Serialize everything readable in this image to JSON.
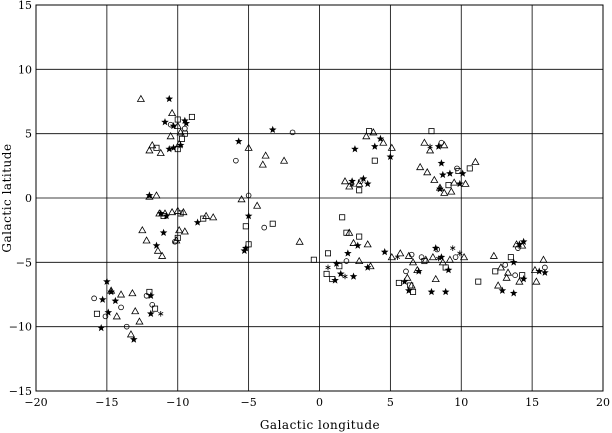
{
  "chart_data": {
    "type": "scatter",
    "title": "",
    "xlabel": "Galactic longitude",
    "ylabel": "Galactic latitude",
    "xlim": [
      -20,
      20
    ],
    "ylim": [
      -15,
      15
    ],
    "xticks": [
      -20,
      -15,
      -10,
      -5,
      0,
      5,
      10,
      15,
      20
    ],
    "yticks": [
      -15,
      -10,
      -5,
      0,
      5,
      10,
      15
    ],
    "xtick_labels": [
      "−20",
      "−15",
      "−10",
      "−5",
      "0",
      "5",
      "10",
      "15",
      "20"
    ],
    "ytick_labels": [
      "−15",
      "−10",
      "−5",
      "0",
      "5",
      "10",
      "15"
    ],
    "grid": true,
    "series": [
      {
        "marker": "triangle",
        "points": [
          [
            -12.6,
            7.7
          ],
          [
            -10.4,
            6.6
          ],
          [
            -10.0,
            5.6
          ],
          [
            -9.8,
            5.1
          ],
          [
            -10.5,
            4.8
          ],
          [
            -11.8,
            4.1
          ],
          [
            -12.0,
            3.7
          ],
          [
            -11.2,
            3.5
          ],
          [
            -9.9,
            4.2
          ],
          [
            -12.0,
            0.1
          ],
          [
            -11.5,
            0.2
          ],
          [
            -11.3,
            -1.2
          ],
          [
            -10.9,
            -1.2
          ],
          [
            -10.4,
            -1.1
          ],
          [
            -10.0,
            -1.0
          ],
          [
            -9.6,
            -1.1
          ],
          [
            -12.5,
            -2.5
          ],
          [
            -12.2,
            -3.3
          ],
          [
            -11.4,
            -4.1
          ],
          [
            -11.1,
            -4.5
          ],
          [
            -10.1,
            -3.3
          ],
          [
            -9.5,
            -2.6
          ],
          [
            -9.9,
            -2.5
          ],
          [
            -8.0,
            -1.4
          ],
          [
            -7.5,
            -1.5
          ],
          [
            -5.0,
            3.9
          ],
          [
            -3.8,
            3.3
          ],
          [
            -4.0,
            2.6
          ],
          [
            -2.5,
            2.9
          ],
          [
            -5.5,
            -0.1
          ],
          [
            -4.4,
            -0.6
          ],
          [
            -1.4,
            -3.4
          ],
          [
            -14.7,
            -7.2
          ],
          [
            -14.3,
            -9.2
          ],
          [
            -13.2,
            -7.4
          ],
          [
            -13.0,
            -8.8
          ],
          [
            -12.7,
            -9.6
          ],
          [
            -13.3,
            -10.6
          ],
          [
            -14.0,
            -7.5
          ],
          [
            1.8,
            1.3
          ],
          [
            2.1,
            0.9
          ],
          [
            2.8,
            1.1
          ],
          [
            3.3,
            4.8
          ],
          [
            3.8,
            5.1
          ],
          [
            4.5,
            4.3
          ],
          [
            5.1,
            3.9
          ],
          [
            7.4,
            4.3
          ],
          [
            7.8,
            3.7
          ],
          [
            8.8,
            4.1
          ],
          [
            7.1,
            2.4
          ],
          [
            7.6,
            2.0
          ],
          [
            8.1,
            1.4
          ],
          [
            8.5,
            0.8
          ],
          [
            8.8,
            0.4
          ],
          [
            9.3,
            0.5
          ],
          [
            9.5,
            1.2
          ],
          [
            10.3,
            1.1
          ],
          [
            11.0,
            2.8
          ],
          [
            2.1,
            -2.7
          ],
          [
            2.4,
            -3.5
          ],
          [
            3.4,
            -3.6
          ],
          [
            2.8,
            -4.9
          ],
          [
            3.6,
            -5.3
          ],
          [
            5.1,
            -4.6
          ],
          [
            5.7,
            -4.3
          ],
          [
            6.3,
            -4.5
          ],
          [
            6.6,
            -5.0
          ],
          [
            6.9,
            -5.6
          ],
          [
            7.5,
            -4.8
          ],
          [
            8.0,
            -4.6
          ],
          [
            8.7,
            -5.0
          ],
          [
            9.2,
            -4.8
          ],
          [
            10.2,
            -4.6
          ],
          [
            6.2,
            -6.2
          ],
          [
            6.5,
            -6.8
          ],
          [
            8.2,
            -6.3
          ],
          [
            12.3,
            -4.5
          ],
          [
            12.8,
            -5.4
          ],
          [
            13.3,
            -5.8
          ],
          [
            13.9,
            -3.6
          ],
          [
            14.3,
            -3.7
          ],
          [
            15.2,
            -5.6
          ],
          [
            15.8,
            -4.8
          ],
          [
            12.6,
            -6.8
          ],
          [
            13.2,
            -6.2
          ],
          [
            14.1,
            -6.5
          ],
          [
            15.3,
            -6.5
          ]
        ]
      },
      {
        "marker": "star",
        "points": [
          [
            -10.6,
            7.7
          ],
          [
            -10.9,
            5.9
          ],
          [
            -10.3,
            5.6
          ],
          [
            -9.5,
            6.0
          ],
          [
            -9.4,
            5.8
          ],
          [
            -10.6,
            3.8
          ],
          [
            -10.3,
            3.9
          ],
          [
            -9.8,
            4.1
          ],
          [
            -5.7,
            4.4
          ],
          [
            -3.3,
            5.3
          ],
          [
            -12.0,
            0.2
          ],
          [
            -11.2,
            -1.2
          ],
          [
            -10.8,
            -1.4
          ],
          [
            -11.5,
            -3.7
          ],
          [
            -8.6,
            -1.9
          ],
          [
            -5.0,
            -1.4
          ],
          [
            -5.2,
            -3.9
          ],
          [
            -5.3,
            -4.1
          ],
          [
            -15.4,
            -10.1
          ],
          [
            -15.3,
            -7.9
          ],
          [
            -15.0,
            -6.5
          ],
          [
            -14.7,
            -7.3
          ],
          [
            -14.4,
            -8.0
          ],
          [
            -14.9,
            -8.9
          ],
          [
            -11.9,
            -7.6
          ],
          [
            -11.9,
            -9.0
          ],
          [
            -13.1,
            -11.0
          ],
          [
            -11.0,
            -2.7
          ],
          [
            2.3,
            1.3
          ],
          [
            3.1,
            1.5
          ],
          [
            3.4,
            1.1
          ],
          [
            2.5,
            3.8
          ],
          [
            3.9,
            4.0
          ],
          [
            4.3,
            4.6
          ],
          [
            5.0,
            3.2
          ],
          [
            8.4,
            4.0
          ],
          [
            8.6,
            2.7
          ],
          [
            8.7,
            1.8
          ],
          [
            8.5,
            0.7
          ],
          [
            9.2,
            1.9
          ],
          [
            9.9,
            1.1
          ],
          [
            10.1,
            1.9
          ],
          [
            2.7,
            -3.7
          ],
          [
            2.0,
            -4.3
          ],
          [
            1.2,
            -5.1
          ],
          [
            1.5,
            -5.9
          ],
          [
            1.1,
            -6.4
          ],
          [
            2.4,
            -6.1
          ],
          [
            3.4,
            -5.4
          ],
          [
            4.6,
            -4.2
          ],
          [
            6.0,
            -6.5
          ],
          [
            7.0,
            -5.7
          ],
          [
            8.2,
            -3.9
          ],
          [
            8.6,
            -4.6
          ],
          [
            9.1,
            -5.6
          ],
          [
            8.9,
            -7.3
          ],
          [
            7.9,
            -7.3
          ],
          [
            6.3,
            -7.2
          ],
          [
            13.7,
            -5.0
          ],
          [
            14.4,
            -3.4
          ],
          [
            14.1,
            -3.6
          ],
          [
            14.4,
            -6.3
          ],
          [
            15.5,
            -5.7
          ],
          [
            15.9,
            -5.8
          ],
          [
            12.9,
            -7.2
          ],
          [
            13.7,
            -7.4
          ]
        ]
      },
      {
        "marker": "square",
        "points": [
          [
            -10.0,
            6.1
          ],
          [
            -9.0,
            6.3
          ],
          [
            -9.5,
            5.0
          ],
          [
            -9.7,
            4.6
          ],
          [
            -11.5,
            3.9
          ],
          [
            -10.0,
            3.8
          ],
          [
            -11.0,
            -1.4
          ],
          [
            -9.8,
            -1.2
          ],
          [
            -10.0,
            -3.1
          ],
          [
            -8.2,
            -1.6
          ],
          [
            -5.2,
            -2.2
          ],
          [
            -3.3,
            -2.0
          ],
          [
            -5.0,
            -3.6
          ],
          [
            -0.4,
            -4.8
          ],
          [
            0.6,
            -4.3
          ],
          [
            1.6,
            -1.5
          ],
          [
            1.9,
            -2.7
          ],
          [
            2.8,
            -3.0
          ],
          [
            0.5,
            -5.9
          ],
          [
            0.9,
            -6.3
          ],
          [
            3.5,
            5.2
          ],
          [
            3.9,
            2.9
          ],
          [
            2.8,
            0.6
          ],
          [
            7.9,
            5.2
          ],
          [
            9.1,
            1.0
          ],
          [
            9.8,
            2.1
          ],
          [
            10.6,
            2.3
          ],
          [
            -15.7,
            -9.0
          ],
          [
            -12.0,
            -7.3
          ],
          [
            -11.6,
            -8.6
          ],
          [
            5.6,
            -6.6
          ],
          [
            6.4,
            -6.8
          ],
          [
            6.6,
            -7.3
          ],
          [
            7.4,
            -4.9
          ],
          [
            8.9,
            -5.4
          ],
          [
            11.2,
            -6.5
          ],
          [
            12.4,
            -5.7
          ],
          [
            13.5,
            -4.6
          ],
          [
            14.3,
            -6.0
          ],
          [
            1.4,
            -5.3
          ]
        ]
      },
      {
        "marker": "circle",
        "points": [
          [
            -10.5,
            5.7
          ],
          [
            -9.5,
            5.4
          ],
          [
            -1.9,
            5.1
          ],
          [
            -5.9,
            2.9
          ],
          [
            -5.0,
            0.2
          ],
          [
            -3.9,
            -2.3
          ],
          [
            -10.2,
            -3.4
          ],
          [
            -15.9,
            -7.8
          ],
          [
            -15.1,
            -9.2
          ],
          [
            -13.6,
            -10.0
          ],
          [
            -12.2,
            -7.6
          ],
          [
            -11.8,
            -8.3
          ],
          [
            -14.0,
            -8.5
          ],
          [
            6.1,
            -5.7
          ],
          [
            6.5,
            -4.4
          ],
          [
            7.2,
            -4.6
          ],
          [
            8.3,
            -4.0
          ],
          [
            9.6,
            -4.6
          ],
          [
            13.1,
            -5.2
          ],
          [
            13.8,
            -6.0
          ],
          [
            14.0,
            -3.9
          ],
          [
            15.9,
            -5.4
          ],
          [
            2.9,
            1.3
          ],
          [
            8.6,
            4.3
          ],
          [
            9.7,
            2.3
          ],
          [
            1.9,
            -4.9
          ]
        ]
      },
      {
        "marker": "asterisk",
        "points": [
          [
            -11.2,
            -9.0
          ],
          [
            2.3,
            1.0
          ],
          [
            7.8,
            4.0
          ],
          [
            8.4,
            -4.7
          ],
          [
            9.4,
            -3.9
          ],
          [
            9.9,
            -4.3
          ],
          [
            5.5,
            -4.6
          ],
          [
            0.6,
            -5.4
          ],
          [
            1.8,
            -6.1
          ]
        ]
      }
    ]
  }
}
